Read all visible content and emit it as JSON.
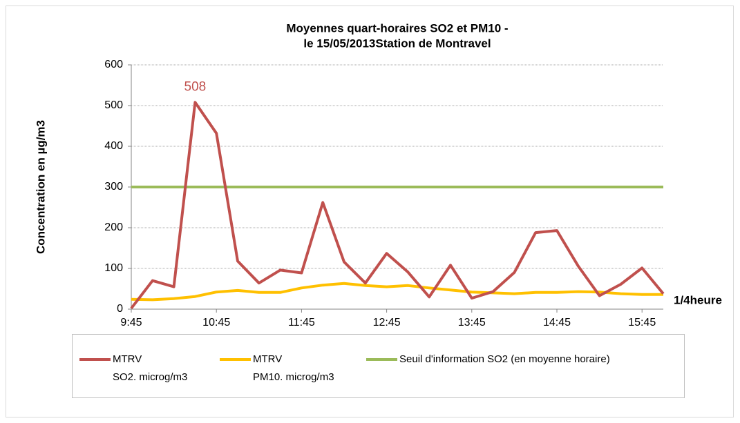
{
  "chart_data": {
    "type": "line",
    "title": "Moyennes quart-horaires SO2 et PM10 -",
    "subtitle": "le 15/05/2013Station de  Montravel",
    "y_label": "Concentration en µg/m3",
    "x_label": "1/4heure",
    "annotation": {
      "text": "508",
      "series": 0,
      "index": 3,
      "color": "#c0504d"
    },
    "categories": [
      "9:45",
      null,
      null,
      null,
      "10:45",
      null,
      null,
      null,
      "11:45",
      null,
      null,
      null,
      "12:45",
      null,
      null,
      null,
      "13:45",
      null,
      null,
      null,
      "14:45",
      null,
      null,
      null,
      "15:45",
      null
    ],
    "series": [
      {
        "name": "MTRV\nSO2. microg/m3",
        "color": "#c0504d",
        "values": [
          2,
          70,
          55,
          508,
          432,
          118,
          64,
          96,
          89,
          262,
          116,
          64,
          137,
          91,
          30,
          108,
          27,
          43,
          90,
          188,
          193,
          106,
          33,
          61,
          101,
          38
        ]
      },
      {
        "name": "MTRV\nPM10. microg/m3",
        "color": "#ffc000",
        "values": [
          24,
          23,
          26,
          31,
          42,
          46,
          41,
          41,
          52,
          59,
          63,
          58,
          55,
          58,
          52,
          47,
          42,
          40,
          38,
          41,
          41,
          43,
          42,
          38,
          36,
          36
        ]
      },
      {
        "name": "Seuil d'information SO2 (en moyenne horaire)",
        "color": "#9bbb59",
        "values": [
          300,
          300,
          300,
          300,
          300,
          300,
          300,
          300,
          300,
          300,
          300,
          300,
          300,
          300,
          300,
          300,
          300,
          300,
          300,
          300,
          300,
          300,
          300,
          300,
          300,
          300
        ]
      }
    ],
    "ylim": [
      0,
      600
    ],
    "yticks": [
      0,
      100,
      200,
      300,
      400,
      500,
      600
    ],
    "grid": true
  }
}
